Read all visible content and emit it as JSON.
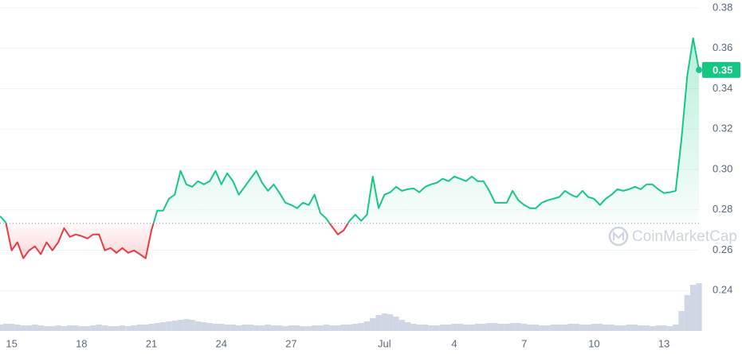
{
  "chart_data": {
    "type": "line",
    "categories": [
      null,
      null,
      "15",
      null,
      null,
      null,
      null,
      null,
      null,
      null,
      null,
      null,
      null,
      null,
      "18",
      null,
      null,
      null,
      null,
      null,
      null,
      null,
      null,
      null,
      null,
      null,
      "21",
      null,
      null,
      null,
      null,
      null,
      null,
      null,
      null,
      null,
      null,
      null,
      "24",
      null,
      null,
      null,
      null,
      null,
      null,
      null,
      null,
      null,
      null,
      null,
      "27",
      null,
      null,
      null,
      null,
      null,
      null,
      null,
      null,
      null,
      null,
      null,
      null,
      null,
      null,
      null,
      "Jul",
      null,
      null,
      null,
      null,
      null,
      null,
      null,
      null,
      null,
      null,
      null,
      "4",
      null,
      null,
      null,
      null,
      null,
      null,
      null,
      null,
      null,
      null,
      null,
      "7",
      null,
      null,
      null,
      null,
      null,
      null,
      null,
      null,
      null,
      null,
      null,
      "10",
      null,
      null,
      null,
      null,
      null,
      null,
      null,
      null,
      null,
      null,
      null,
      "13",
      null,
      null,
      null,
      null,
      null,
      null
    ],
    "series": [
      {
        "color": "#16c784",
        "down_color": "#ea3943",
        "values": [
          0.2769,
          0.2737,
          0.2599,
          0.2639,
          0.256,
          0.2599,
          0.2619,
          0.258,
          0.2639,
          0.2599,
          0.2639,
          0.2709,
          0.2666,
          0.2678,
          0.267,
          0.2658,
          0.2678,
          0.2678,
          0.2599,
          0.2611,
          0.2587,
          0.2611,
          0.2587,
          0.2599,
          0.258,
          0.256,
          0.2698,
          0.2796,
          0.2796,
          0.2855,
          0.2875,
          0.2993,
          0.2926,
          0.2914,
          0.2942,
          0.2926,
          0.2942,
          0.2993,
          0.2926,
          0.2981,
          0.2942,
          0.2875,
          0.2914,
          0.2954,
          0.2993,
          0.2934,
          0.2894,
          0.2926,
          0.2883,
          0.2835,
          0.2824,
          0.2808,
          0.2835,
          0.2824,
          0.2875,
          0.2784,
          0.2757,
          0.2717,
          0.2678,
          0.2698,
          0.2745,
          0.2776,
          0.2745,
          0.2776,
          0.2965,
          0.2808,
          0.2875,
          0.2887,
          0.2914,
          0.2894,
          0.2902,
          0.2906,
          0.2887,
          0.2914,
          0.2926,
          0.2934,
          0.2954,
          0.2942,
          0.2965,
          0.2954,
          0.2942,
          0.2965,
          0.2942,
          0.2942,
          0.2894,
          0.2835,
          0.2835,
          0.2835,
          0.2894,
          0.2847,
          0.2824,
          0.2808,
          0.2808,
          0.2835,
          0.2847,
          0.2855,
          0.2863,
          0.2894,
          0.2875,
          0.2863,
          0.2894,
          0.2863,
          0.2855,
          0.2824,
          0.2855,
          0.2875,
          0.2902,
          0.2894,
          0.2902,
          0.2914,
          0.2902,
          0.2926,
          0.2926,
          0.2902,
          0.2883,
          0.2887,
          0.2894,
          0.315,
          0.3465,
          0.365,
          0.3493
        ]
      }
    ],
    "baseline": 0.2733,
    "volume": [
      8,
      9,
      9,
      8,
      7,
      7,
      8,
      7,
      6,
      6,
      7,
      6,
      7,
      7,
      6,
      6,
      7,
      8,
      7,
      6,
      6,
      7,
      6,
      7,
      8,
      8,
      9,
      10,
      11,
      12,
      13,
      14,
      15,
      14,
      12,
      11,
      10,
      9,
      9,
      8,
      8,
      7,
      8,
      8,
      7,
      7,
      8,
      7,
      7,
      6,
      7,
      7,
      6,
      6,
      7,
      7,
      8,
      7,
      7,
      8,
      8,
      9,
      10,
      12,
      16,
      20,
      22,
      21,
      18,
      14,
      11,
      9,
      8,
      8,
      7,
      7,
      8,
      8,
      9,
      9,
      8,
      8,
      9,
      9,
      10,
      10,
      9,
      9,
      10,
      10,
      9,
      8,
      8,
      7,
      7,
      8,
      8,
      8,
      9,
      9,
      8,
      8,
      9,
      9,
      8,
      8,
      7,
      7,
      8,
      8,
      7,
      7,
      6,
      7,
      7,
      6,
      8,
      25,
      45,
      58,
      60
    ],
    "volume_color": "#cfd6e4",
    "ylim": [
      0.22,
      0.38
    ],
    "yticks": [
      0.24,
      0.26,
      0.28,
      {
        "value": 0.3,
        "label": "0.30"
      },
      0.32,
      0.34,
      0.36,
      0.38
    ],
    "grid": true,
    "last_value_label": "0.35",
    "watermark": "CoinMarketCap"
  }
}
